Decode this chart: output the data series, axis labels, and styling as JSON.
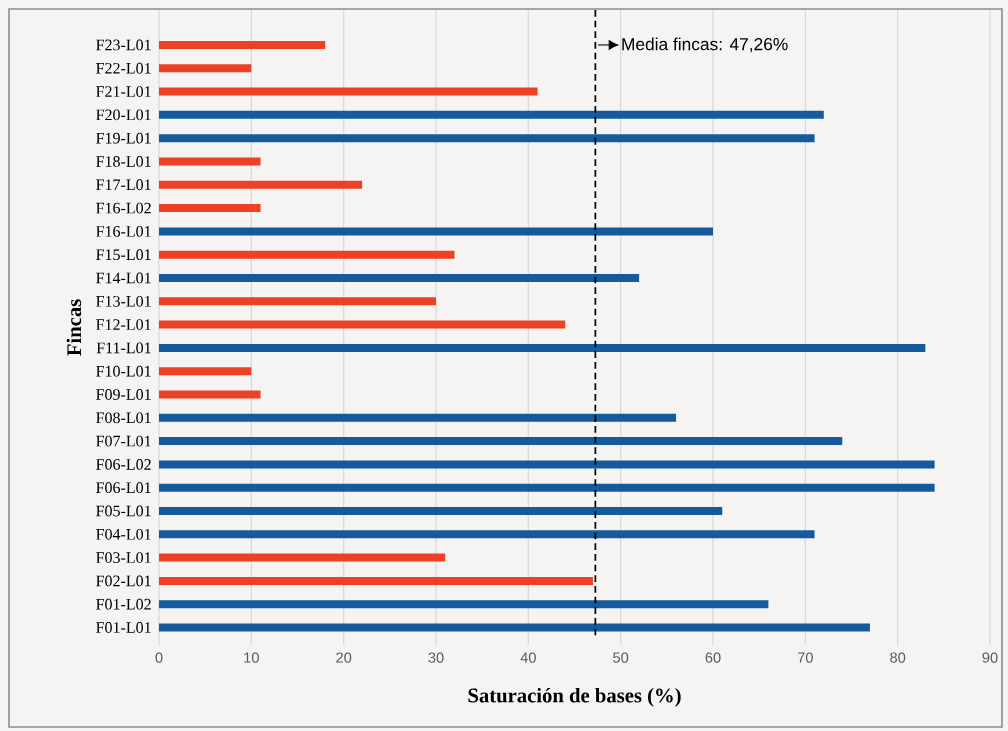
{
  "chart_data": {
    "type": "bar",
    "orientation": "horizontal",
    "xlabel": "Saturación de bases (%)",
    "ylabel": "Fincas",
    "categories": [
      "F23-L01",
      "F22-L01",
      "F21-L01",
      "F20-L01",
      "F19-L01",
      "F18-L01",
      "F17-L01",
      "F16-L02",
      "F16-L01",
      "F15-L01",
      "F14-L01",
      "F13-L01",
      "F12-L01",
      "F11-L01",
      "F10-L01",
      "F09-L01",
      "F08-L01",
      "F07-L01",
      "F06-L02",
      "F06-L01",
      "F05-L01",
      "F04-L01",
      "F03-L01",
      "F02-L01",
      "F01-L02",
      "F01-L01"
    ],
    "values": [
      18,
      10,
      41,
      72,
      71,
      11,
      22,
      11,
      60,
      32,
      52,
      30,
      44,
      83,
      10,
      11,
      56,
      74,
      84,
      84,
      61,
      71,
      31,
      47,
      66,
      77
    ],
    "colors": [
      "#ee4024",
      "#ee4024",
      "#ee4024",
      "#145a9c",
      "#145a9c",
      "#ee4024",
      "#ee4024",
      "#ee4024",
      "#145a9c",
      "#ee4024",
      "#145a9c",
      "#ee4024",
      "#ee4024",
      "#145a9c",
      "#ee4024",
      "#ee4024",
      "#145a9c",
      "#145a9c",
      "#145a9c",
      "#145a9c",
      "#145a9c",
      "#145a9c",
      "#ee4024",
      "#ee4024",
      "#145a9c",
      "#145a9c"
    ],
    "xlim": [
      0,
      90
    ],
    "xticks": [
      0,
      10,
      20,
      30,
      40,
      50,
      60,
      70,
      80,
      90
    ],
    "grid": "x",
    "ref_lines": [
      {
        "axis": "x",
        "value": 47.26,
        "label": "Media fincas: 47,26%",
        "color": "#000000",
        "line_style": "dashed"
      }
    ]
  }
}
